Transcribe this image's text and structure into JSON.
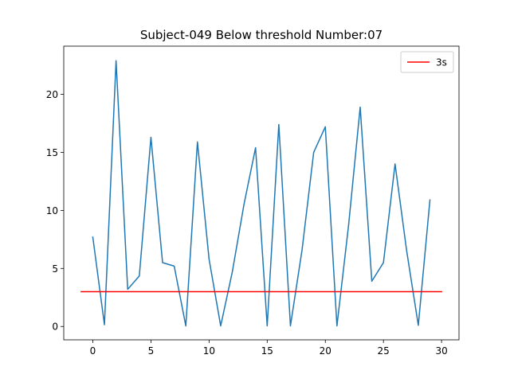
{
  "chart_data": {
    "type": "line",
    "title": "Subject-049   Below threshold Number:07",
    "xlabel": "",
    "ylabel": "",
    "xlim": [
      -2.5,
      31.5
    ],
    "ylim": [
      -1.15,
      24.15
    ],
    "x_ticks": [
      0,
      5,
      10,
      15,
      20,
      25,
      30
    ],
    "y_ticks": [
      0,
      5,
      10,
      15,
      20
    ],
    "grid": false,
    "legend": {
      "position": "top-right",
      "entries": [
        "3s"
      ]
    },
    "series": [
      {
        "color": "#1f77b4",
        "x": [
          0,
          1,
          2,
          3,
          4,
          5,
          6,
          7,
          8,
          9,
          10,
          11,
          12,
          13,
          14,
          15,
          16,
          17,
          18,
          19,
          20,
          21,
          22,
          23,
          24,
          25,
          26,
          27,
          28,
          29
        ],
        "values": [
          7.7,
          0.15,
          22.9,
          3.2,
          4.35,
          16.3,
          5.5,
          5.2,
          0.05,
          15.9,
          5.8,
          0.05,
          4.7,
          10.5,
          15.4,
          0.05,
          17.4,
          0.05,
          6.6,
          15.0,
          17.2,
          0.05,
          8.7,
          18.9,
          3.9,
          5.5,
          14.0,
          6.5,
          0.1,
          10.9
        ]
      },
      {
        "name": "3s",
        "color": "#ff0000",
        "x": [
          -1,
          30
        ],
        "values": [
          3,
          3
        ]
      }
    ]
  }
}
